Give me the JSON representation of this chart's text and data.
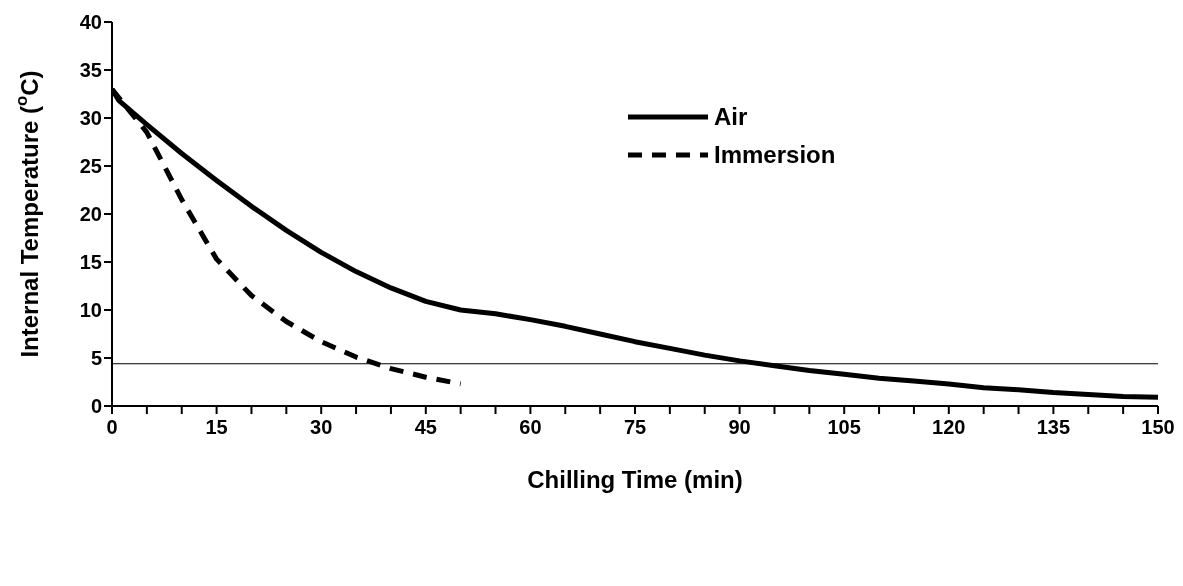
{
  "chart_data": {
    "type": "line",
    "xlabel": "Chilling Time (min)",
    "ylabel": "Internal Temperature ($^{o}$C)",
    "xlim": [
      0,
      150
    ],
    "ylim": [
      0,
      40
    ],
    "xticks": [
      0,
      {
        "value": 5,
        "label": null
      },
      {
        "value": 10,
        "label": null
      },
      15,
      {
        "value": 20,
        "label": null
      },
      {
        "value": 25,
        "label": null
      },
      30,
      {
        "value": 35,
        "label": null
      },
      {
        "value": 40,
        "label": null
      },
      45,
      {
        "value": 50,
        "label": null
      },
      {
        "value": 55,
        "label": null
      },
      60,
      {
        "value": 65,
        "label": null
      },
      {
        "value": 70,
        "label": null
      },
      75,
      {
        "value": 80,
        "label": null
      },
      {
        "value": 85,
        "label": null
      },
      90,
      {
        "value": 95,
        "label": null
      },
      {
        "value": 100,
        "label": null
      },
      105,
      {
        "value": 110,
        "label": null
      },
      {
        "value": 115,
        "label": null
      },
      120,
      {
        "value": 125,
        "label": null
      },
      {
        "value": 130,
        "label": null
      },
      135,
      {
        "value": 140,
        "label": null
      },
      {
        "value": 145,
        "label": null
      },
      150
    ],
    "yticks": [
      0,
      5,
      10,
      15,
      20,
      25,
      30,
      35,
      40
    ],
    "grid": false,
    "legend": "top right",
    "marker": "none",
    "ref_lines": [
      {
        "axis": "y",
        "value": 4.4,
        "color": "#000000"
      }
    ],
    "series": [
      {
        "name": "Air",
        "color": "#000000",
        "line_style": "solid",
        "x": [
          0,
          1,
          5,
          10,
          15,
          20,
          25,
          30,
          35,
          40,
          45,
          50,
          55,
          60,
          65,
          70,
          75,
          80,
          85,
          90,
          95,
          100,
          105,
          110,
          115,
          120,
          125,
          130,
          135,
          140,
          145,
          150
        ],
        "values": [
          33,
          31.8,
          29.3,
          26.3,
          23.5,
          20.8,
          18.3,
          16,
          14,
          12.3,
          10.9,
          10,
          9.6,
          9,
          8.3,
          7.5,
          6.7,
          6,
          5.3,
          4.7,
          4.2,
          3.7,
          3.3,
          2.9,
          2.6,
          2.3,
          1.9,
          1.7,
          1.4,
          1.2,
          1,
          0.9
        ]
      },
      {
        "name": "Immersion",
        "color": "#000000",
        "line_style": "dashed",
        "x": [
          0,
          5,
          10,
          15,
          20,
          25,
          30,
          35,
          40,
          45,
          50
        ],
        "values": [
          33,
          28.5,
          21.5,
          15.3,
          11.5,
          8.8,
          6.7,
          5.1,
          3.9,
          3,
          2.3
        ]
      }
    ]
  }
}
